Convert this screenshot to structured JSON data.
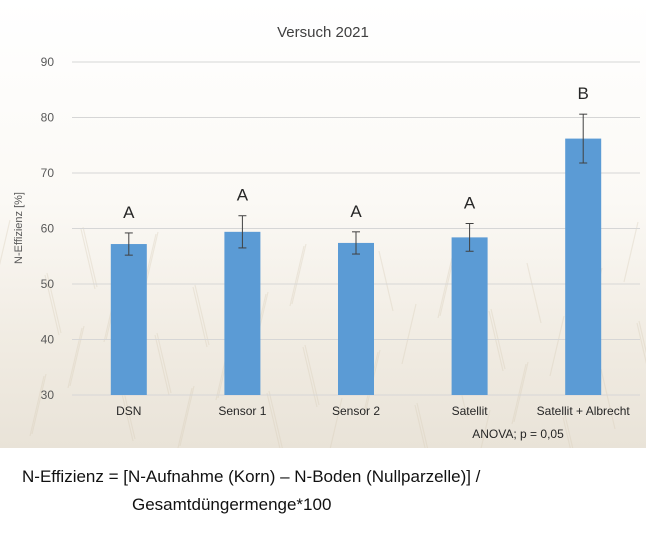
{
  "chart_data": {
    "type": "bar",
    "title": "Versuch 2021",
    "ylabel": "N-Effizienz [%]",
    "xlabel": "",
    "ylim": [
      30,
      90
    ],
    "yticks": [
      30,
      40,
      50,
      60,
      70,
      80,
      90
    ],
    "grid": true,
    "categories": [
      "DSN",
      "Sensor 1",
      "Sensor 2",
      "Satellit",
      "Satellit + Albrecht"
    ],
    "values": [
      57.2,
      59.4,
      57.4,
      58.4,
      76.2
    ],
    "error": [
      2.0,
      2.9,
      2.0,
      2.5,
      4.4
    ],
    "groups": [
      "A",
      "A",
      "A",
      "A",
      "B"
    ],
    "annotation": "ANOVA; p = 0,05",
    "colors": {
      "bar": "#5B9BD5",
      "grid": "#d6d6d6",
      "error": "#404040"
    }
  },
  "formula": {
    "line1": "N-Effizienz = [N-Aufnahme (Korn) – N-Boden (Nullparzelle)] /",
    "line2": "Gesamtdüngermenge*100"
  }
}
